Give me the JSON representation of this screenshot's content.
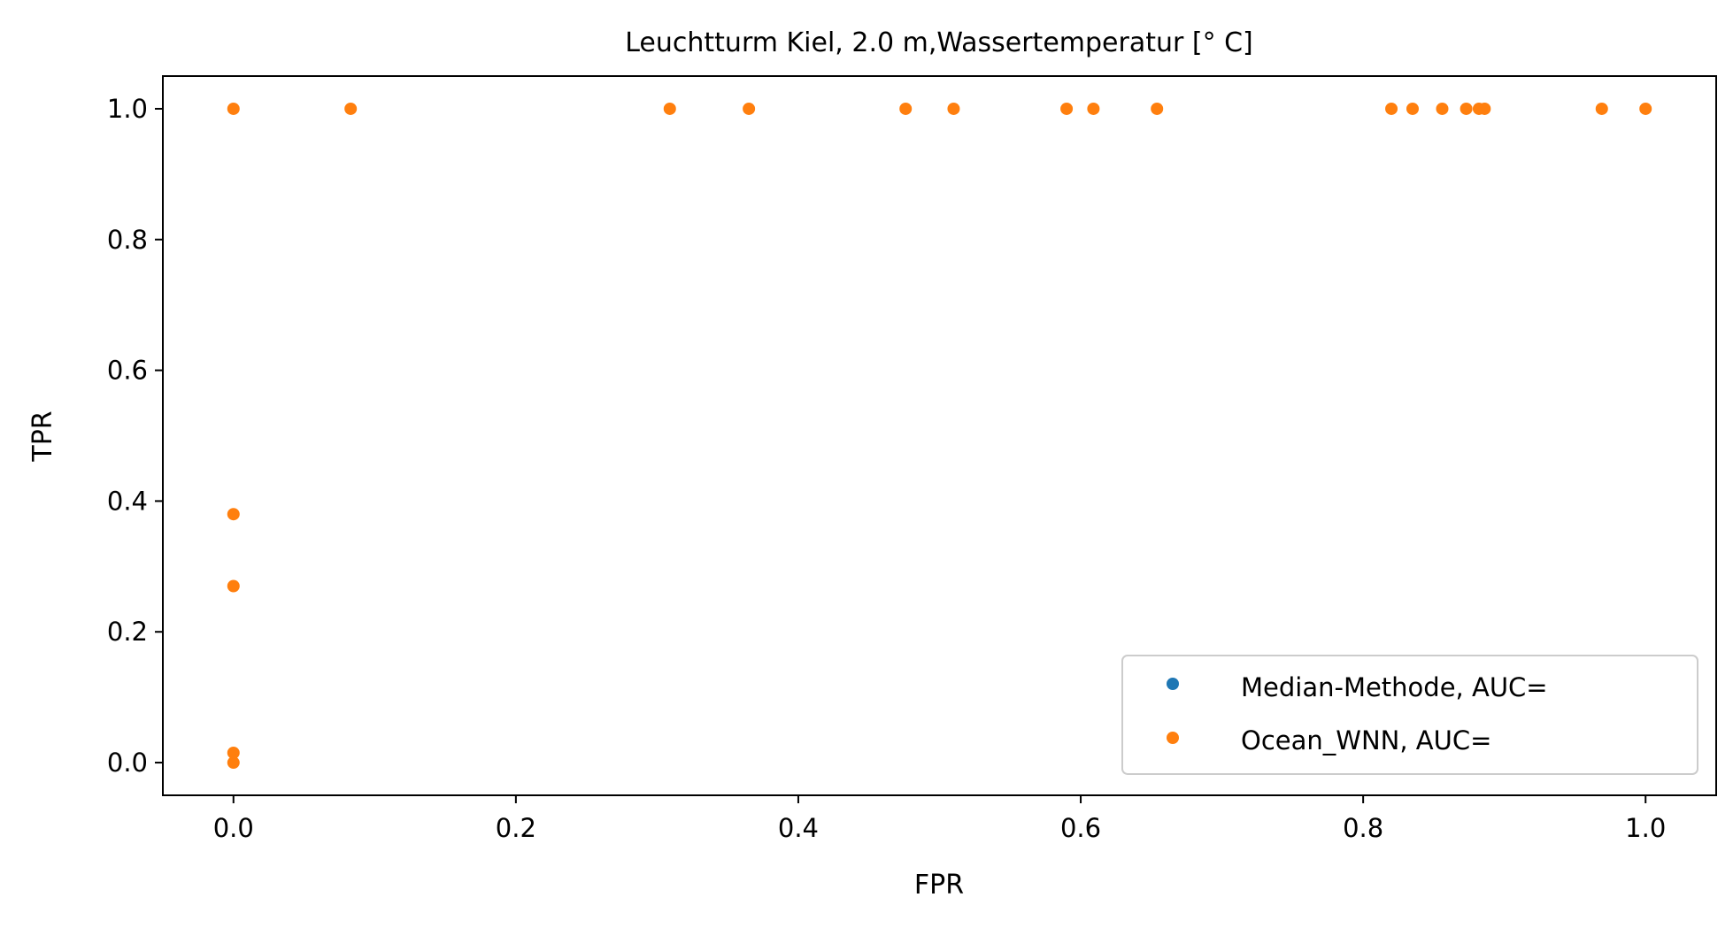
{
  "chart_data": {
    "type": "scatter",
    "title": "Leuchtturm Kiel, 2.0 m,Wassertemperatur [° C]",
    "xlabel": "FPR",
    "ylabel": "TPR",
    "xlim": [
      -0.05,
      1.05
    ],
    "ylim": [
      -0.05,
      1.05
    ],
    "xticks": [
      0.0,
      0.2,
      0.4,
      0.6,
      0.8,
      1.0
    ],
    "yticks": [
      0.0,
      0.2,
      0.4,
      0.6,
      0.8,
      1.0
    ],
    "xtick_labels": [
      "0.0",
      "0.2",
      "0.4",
      "0.6",
      "0.8",
      "1.0"
    ],
    "ytick_labels": [
      "0.0",
      "0.2",
      "0.4",
      "0.6",
      "0.8",
      "1.0"
    ],
    "grid": false,
    "legend_position": "lower right",
    "series": [
      {
        "name": "Median-Methode, AUC=",
        "color": "#1f77b4",
        "points": []
      },
      {
        "name": "Ocean_WNN, AUC=",
        "color": "#ff7f0e",
        "points": [
          [
            0.0,
            0.0
          ],
          [
            0.0,
            0.015
          ],
          [
            0.0,
            0.27
          ],
          [
            0.0,
            0.38
          ],
          [
            0.0,
            1.0
          ],
          [
            0.083,
            1.0
          ],
          [
            0.309,
            1.0
          ],
          [
            0.365,
            1.0
          ],
          [
            0.476,
            1.0
          ],
          [
            0.51,
            1.0
          ],
          [
            0.59,
            1.0
          ],
          [
            0.609,
            1.0
          ],
          [
            0.654,
            1.0
          ],
          [
            0.82,
            1.0
          ],
          [
            0.835,
            1.0
          ],
          [
            0.856,
            1.0
          ],
          [
            0.873,
            1.0
          ],
          [
            0.882,
            1.0
          ],
          [
            0.886,
            1.0
          ],
          [
            0.969,
            1.0
          ],
          [
            1.0,
            1.0
          ]
        ]
      }
    ]
  }
}
